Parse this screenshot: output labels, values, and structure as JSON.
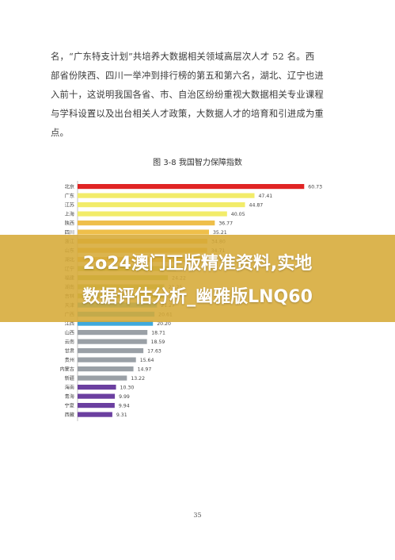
{
  "body_text": "名，“广东特支计划”共培养大数据相关领域高层次人才 52 名。西\n部省份陕西、四川一举冲到排行榜的第五和第六名，湖北、辽宁也进\n入前十，这说明我国各省、市、自治区纷纷重视大数据相关专业课程\n与学科设置以及出台相关人才政策，大数据人才的培育和引进成为重\n点。",
  "figure_title": "图 3-8    我国智力保障指数",
  "banner": {
    "line1": "2o24澳门正版精准资料,实地",
    "line2": "数据评估分析_幽雅版LNQ60"
  },
  "page_number": "35",
  "chart_data": {
    "type": "bar",
    "orientation": "horizontal",
    "categories": [
      "北京",
      "广东",
      "江苏",
      "上海",
      "陕西",
      "四川",
      "浙江",
      "山东",
      "湖北",
      "辽宁",
      "福建",
      "湖南",
      "吉林",
      "天津",
      "广西",
      "江西",
      "山西",
      "云南",
      "甘肃",
      "贵州",
      "内蒙古",
      "新疆",
      "海南",
      "青海",
      "宁夏",
      "西藏"
    ],
    "values": [
      60.73,
      47.41,
      44.87,
      40.05,
      36.77,
      35.21,
      34.8,
      34.71,
      33.84,
      26.35,
      24.22,
      23.25,
      23.18,
      21.27,
      20.61,
      20.2,
      18.71,
      18.59,
      17.63,
      15.64,
      14.97,
      13.22,
      10.3,
      9.99,
      9.94,
      9.31
    ],
    "value_labels": [
      "60.73",
      "47.41",
      "44.87",
      "40.05",
      "36.77",
      "35.21",
      "34.80",
      "34.71",
      "33.84",
      "26.35",
      "24.22",
      "23.25",
      "23.18",
      "21.27",
      "20.61",
      "20.20",
      "18.71",
      "18.59",
      "17.63",
      "15.64",
      "14.97",
      "13.22",
      "10.30",
      "9.99",
      "9.94",
      "9.31"
    ],
    "colors": [
      "#e02424",
      "#f2ec6a",
      "#f2ec6a",
      "#f2ec6a",
      "#efbf4a",
      "#efbf4a",
      "#efbf4a",
      "#efbf4a",
      "#efbf4a",
      "#a8c75a",
      "#a8c75a",
      "#a8c75a",
      "#a8c75a",
      "#3fa9dc",
      "#3fa9dc",
      "#3fa9dc",
      "#9aa0a6",
      "#9aa0a6",
      "#9aa0a6",
      "#9aa0a6",
      "#9aa0a6",
      "#9aa0a6",
      "#6b3fa0",
      "#6b3fa0",
      "#6b3fa0",
      "#6b3fa0"
    ],
    "xlim": [
      0,
      70
    ],
    "grid": false
  }
}
